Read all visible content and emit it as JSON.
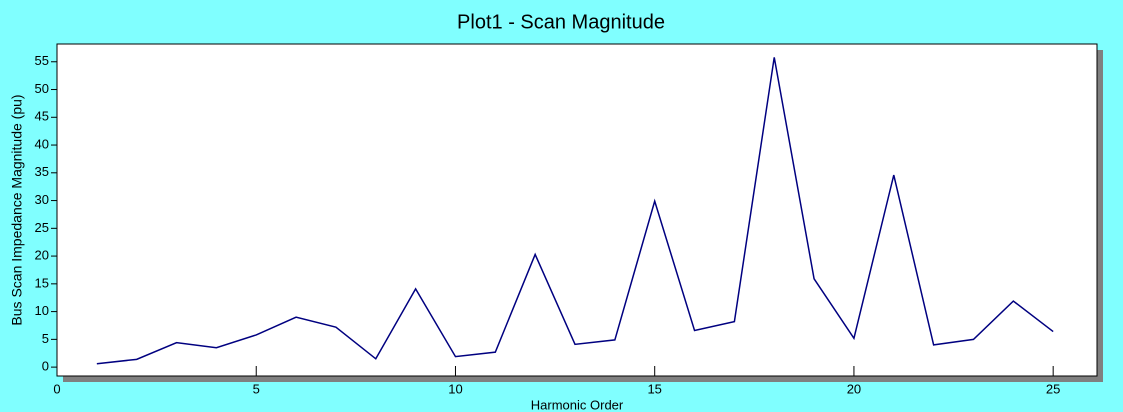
{
  "chart_data": {
    "type": "line",
    "title": "Plot1 - Scan Magnitude",
    "x_label": "Harmonic Order",
    "y_label": "Bus Scan Impedance Magnitude (pu)",
    "x": [
      1,
      2,
      3,
      4,
      5,
      6,
      7,
      8,
      9,
      10,
      11,
      12,
      13,
      14,
      15,
      16,
      17,
      18,
      19,
      20,
      21,
      22,
      23,
      24,
      25
    ],
    "series": [
      {
        "color": "#000080",
        "values": [
          0.6,
          1.4,
          4.4,
          3.5,
          5.8,
          9,
          7.2,
          1.5,
          14.1,
          1.9,
          2.7,
          20.3,
          4.1,
          4.9,
          29.9,
          6.6,
          8.2,
          55.8,
          15.9,
          5.2,
          34.6,
          4.0,
          5.0,
          11.9,
          6.4
        ]
      }
    ],
    "xlim": [
      0,
      26.1
    ],
    "xticks": [
      0,
      5,
      10,
      15,
      20,
      25
    ],
    "ylim": [
      -1.6,
      58.2
    ],
    "yticks": [
      0,
      5,
      10,
      15,
      20,
      25,
      30,
      35,
      40,
      45,
      50,
      55
    ]
  }
}
